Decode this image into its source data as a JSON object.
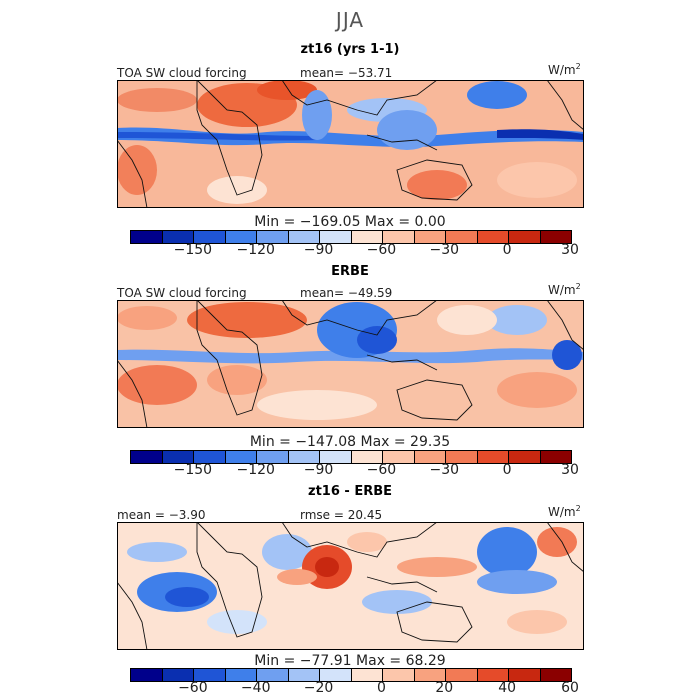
{
  "season": "JJA",
  "panels": [
    {
      "title": "zt16 (yrs 1-1)",
      "left_label": "TOA SW cloud forcing",
      "center_label": "mean= −53.71",
      "unit_base": "W/m",
      "unit_exp": "2",
      "minmax": "Min = −169.05  Max =   0.00",
      "colorbar_ticks": [
        "−150",
        "−120",
        "−90",
        "−60",
        "−30",
        "0",
        "30"
      ]
    },
    {
      "title": "ERBE",
      "left_label": "TOA SW cloud forcing",
      "center_label": "mean= −49.59",
      "unit_base": "W/m",
      "unit_exp": "2",
      "minmax": "Min = −147.08  Max =  29.35",
      "colorbar_ticks": [
        "−150",
        "−120",
        "−90",
        "−60",
        "−30",
        "0",
        "30"
      ]
    },
    {
      "title": "zt16 - ERBE",
      "left_label": "mean =  −3.90",
      "center_label": "rmse =  20.45",
      "unit_base": "W/m",
      "unit_exp": "2",
      "minmax": "Min = −77.91  Max =  68.29",
      "colorbar_ticks": [
        "−60",
        "−40",
        "−20",
        "0",
        "20",
        "40",
        "60"
      ]
    }
  ],
  "colors": {
    "colorbar": [
      "#00008b",
      "#0a2fb0",
      "#1f55d6",
      "#3f7fea",
      "#6f9ff0",
      "#a3c3f6",
      "#d3e3fa",
      "#fde3d3",
      "#fcc6ab",
      "#f8a27f",
      "#f27a55",
      "#e54b2a",
      "#c82810",
      "#8b0000"
    ],
    "ocean": "#f7c8b0",
    "land_outline": "#111111"
  }
}
